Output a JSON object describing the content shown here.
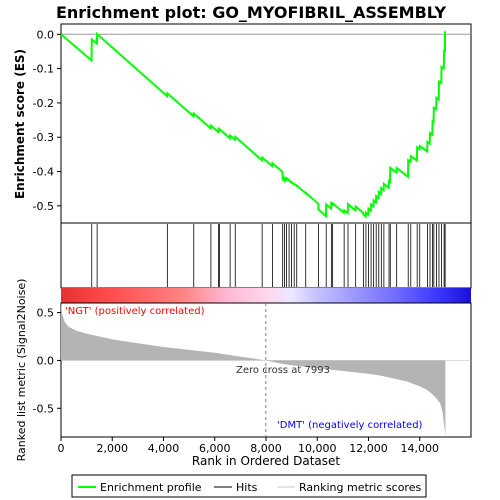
{
  "chart_data": {
    "type": "line",
    "title": "Enrichment plot: GO_MYOFIBRIL_ASSEMBLY",
    "xlabel": "Rank in Ordered Dataset",
    "ylabel_top": "Enrichment score (ES)",
    "ylabel_bottom": "Ranked list metric (Signal2Noise)",
    "xlim": [
      0,
      16000
    ],
    "es_ylim": [
      -0.55,
      0.03
    ],
    "metric_ylim": [
      -0.8,
      0.6
    ],
    "x_ticks": [
      0,
      2000,
      4000,
      6000,
      8000,
      10000,
      12000,
      14000
    ],
    "x_tick_labels": [
      "0",
      "2,000",
      "4,000",
      "6,000",
      "8,000",
      "10,000",
      "12,000",
      "14,000"
    ],
    "es_ticks": [
      0.0,
      -0.1,
      -0.2,
      -0.3,
      -0.4,
      -0.5
    ],
    "es_tick_labels": [
      "0.0",
      "-0.1",
      "-0.2",
      "-0.3",
      "-0.4",
      "-0.5"
    ],
    "metric_ticks": [
      0.5,
      0.0,
      -0.5
    ],
    "metric_tick_labels": [
      "0.5",
      "0.0",
      "-0.5"
    ],
    "hits": [
      1200,
      1410,
      4150,
      5180,
      5850,
      6150,
      6180,
      6600,
      6800,
      7850,
      8250,
      8650,
      8720,
      8800,
      8900,
      9000,
      9100,
      9200,
      9550,
      10050,
      10350,
      10550,
      10600,
      11050,
      11200,
      11500,
      11800,
      11900,
      12000,
      12100,
      12200,
      12300,
      12400,
      12500,
      12600,
      12800,
      12850,
      13100,
      13550,
      13650,
      13900,
      14000,
      14300,
      14400,
      14500,
      14550,
      14650,
      14750,
      14850,
      14950,
      14990
    ],
    "es_curve": {
      "x": [
        0,
        1190,
        1200,
        1400,
        1410,
        4140,
        4150,
        5170,
        5180,
        5840,
        5850,
        6140,
        6150,
        6170,
        6180,
        6590,
        6600,
        6790,
        6800,
        7840,
        7850,
        8240,
        8250,
        8640,
        8650,
        8710,
        8720,
        8790,
        8800,
        8890,
        8900,
        8990,
        9000,
        9090,
        9100,
        9190,
        9200,
        9540,
        9550,
        10040,
        10050,
        10340,
        10350,
        10540,
        10550,
        10590,
        10600,
        11040,
        11050,
        11190,
        11200,
        11490,
        11500,
        11790,
        11800,
        11890,
        11900,
        11990,
        12000,
        12090,
        12100,
        12190,
        12200,
        12290,
        12300,
        12390,
        12400,
        12490,
        12500,
        12590,
        12600,
        12790,
        12800,
        12840,
        12850,
        13090,
        13100,
        13540,
        13550,
        13640,
        13650,
        13890,
        13900,
        13990,
        14000,
        14290,
        14300,
        14390,
        14400,
        14490,
        14500,
        14540,
        14550,
        14640,
        14650,
        14740,
        14750,
        14840,
        14850,
        14940,
        14950,
        14980,
        14990,
        15000
      ],
      "y": [
        0.0,
        -0.076,
        -0.015,
        -0.027,
        0.001,
        -0.18,
        -0.172,
        -0.239,
        -0.231,
        -0.274,
        -0.266,
        -0.285,
        -0.277,
        -0.279,
        -0.276,
        -0.303,
        -0.295,
        -0.307,
        -0.299,
        -0.367,
        -0.359,
        -0.384,
        -0.376,
        -0.401,
        -0.423,
        -0.427,
        -0.419,
        -0.424,
        -0.419,
        -0.425,
        -0.426,
        -0.432,
        -0.431,
        -0.437,
        -0.436,
        -0.442,
        -0.441,
        -0.463,
        -0.462,
        -0.494,
        -0.511,
        -0.53,
        -0.496,
        -0.508,
        -0.493,
        -0.496,
        -0.493,
        -0.52,
        -0.513,
        -0.521,
        -0.495,
        -0.513,
        -0.502,
        -0.52,
        -0.525,
        -0.531,
        -0.52,
        -0.526,
        -0.508,
        -0.514,
        -0.496,
        -0.502,
        -0.484,
        -0.49,
        -0.472,
        -0.478,
        -0.46,
        -0.466,
        -0.448,
        -0.454,
        -0.436,
        -0.447,
        -0.428,
        -0.43,
        -0.389,
        -0.403,
        -0.39,
        -0.415,
        -0.367,
        -0.372,
        -0.355,
        -0.368,
        -0.33,
        -0.335,
        -0.326,
        -0.341,
        -0.314,
        -0.319,
        -0.288,
        -0.293,
        -0.253,
        -0.255,
        -0.214,
        -0.218,
        -0.185,
        -0.19,
        -0.138,
        -0.142,
        -0.095,
        -0.099,
        -0.048,
        -0.049,
        0.007,
        0.007
      ]
    },
    "metric_curve": {
      "x": [
        0,
        50,
        150,
        300,
        600,
        1000,
        1500,
        2000,
        3000,
        4000,
        5000,
        6000,
        7000,
        7993,
        8500,
        9000,
        10000,
        11000,
        12000,
        12500,
        13000,
        13500,
        14000,
        14300,
        14600,
        14800,
        14900,
        14950,
        15000
      ],
      "y": [
        0.6,
        0.48,
        0.4,
        0.35,
        0.31,
        0.28,
        0.25,
        0.22,
        0.18,
        0.14,
        0.11,
        0.08,
        0.04,
        0.0,
        -0.03,
        -0.05,
        -0.08,
        -0.11,
        -0.14,
        -0.16,
        -0.19,
        -0.22,
        -0.27,
        -0.31,
        -0.38,
        -0.45,
        -0.55,
        -0.68,
        -0.78
      ]
    },
    "annotations": {
      "pos_label": "'NGT' (positively correlated)",
      "neg_label": "'DMT' (negatively correlated)",
      "zero_cross_label": "Zero cross at 7993",
      "zero_cross_x": 7993
    },
    "colors": {
      "es_line": "#00ff00",
      "hit_line": "#000000",
      "metric_fill": "#b4b4b4",
      "pos_text": "#ff0000",
      "neg_text": "#0000ff",
      "zero_line": "#808080",
      "frame": "#000000"
    },
    "legend": {
      "placement": "bottom",
      "items": [
        {
          "label": "Enrichment profile",
          "icon": "green-line"
        },
        {
          "label": "Hits",
          "icon": "black-line"
        },
        {
          "label": "Ranking metric scores",
          "icon": "gray-line"
        }
      ]
    }
  }
}
